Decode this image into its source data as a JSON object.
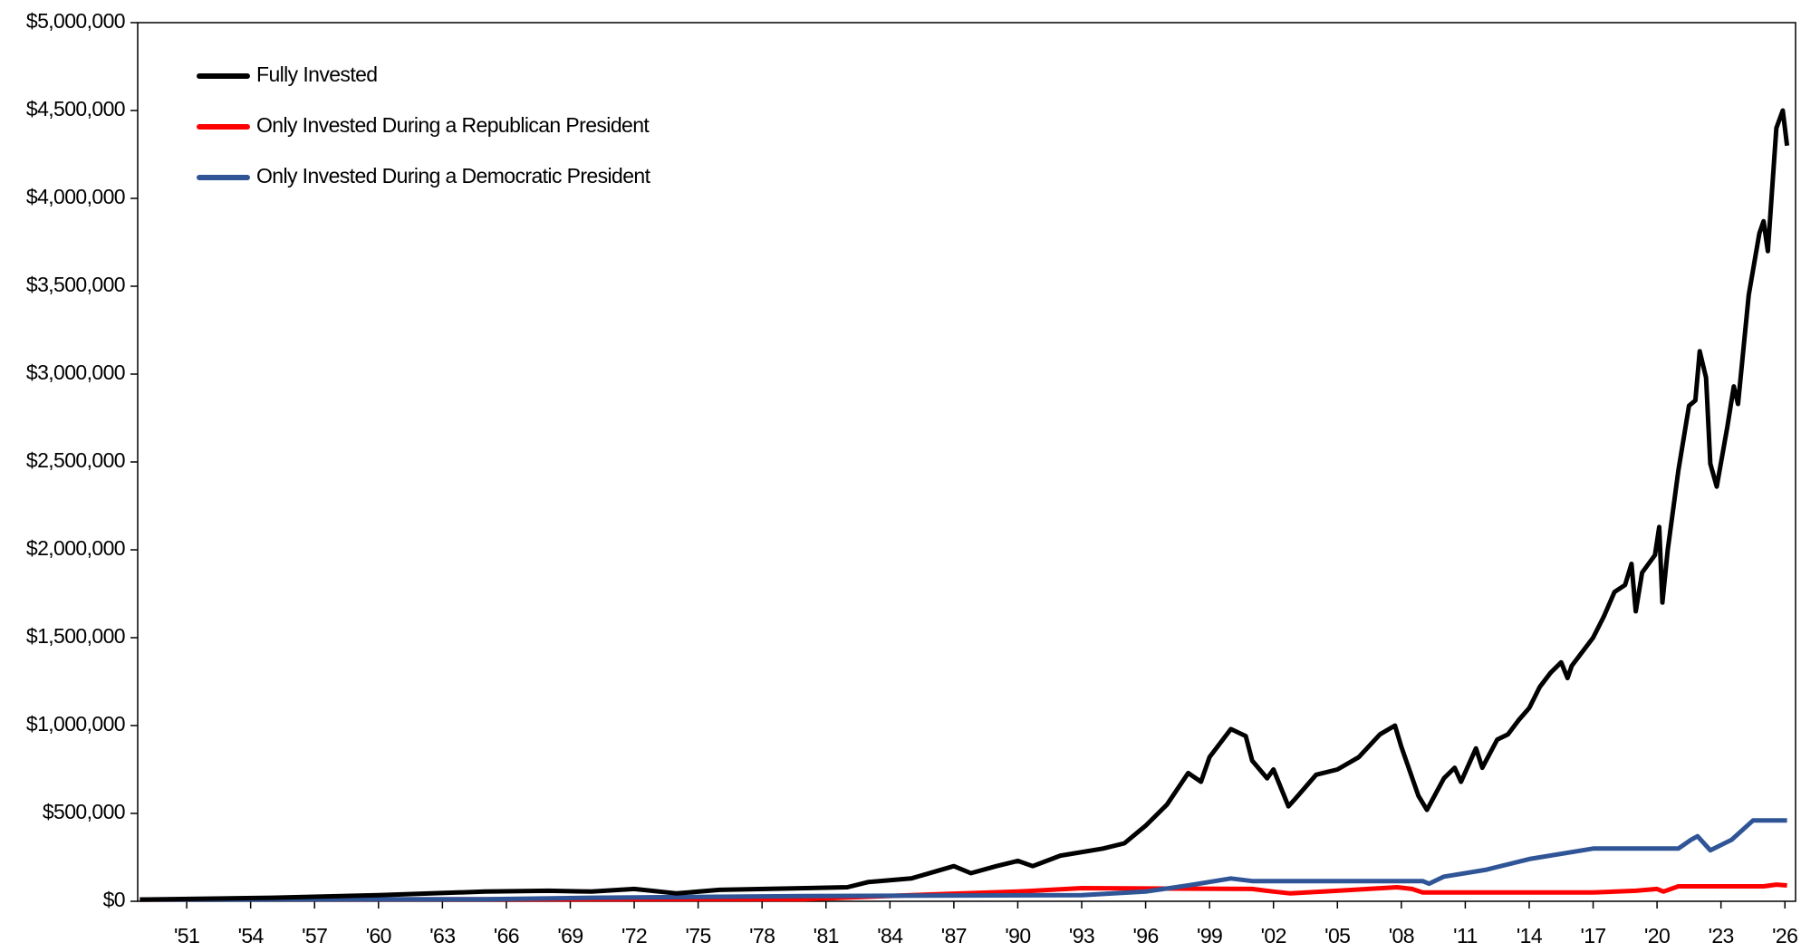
{
  "chart_data": {
    "type": "line",
    "xlim": [
      1948.7,
      2026.5
    ],
    "ylim": [
      0,
      5000000
    ],
    "yticks": [
      {
        "value": 0,
        "label": "$0"
      },
      {
        "value": 500000,
        "label": "$500,000"
      },
      {
        "value": 1000000,
        "label": "$1,000,000"
      },
      {
        "value": 1500000,
        "label": "$1,500,000"
      },
      {
        "value": 2000000,
        "label": "$2,000,000"
      },
      {
        "value": 2500000,
        "label": "$2,500,000"
      },
      {
        "value": 3000000,
        "label": "$3,000,000"
      },
      {
        "value": 3500000,
        "label": "$3,500,000"
      },
      {
        "value": 4000000,
        "label": "$4,000,000"
      },
      {
        "value": 4500000,
        "label": "$4,500,000"
      },
      {
        "value": 5000000,
        "label": "$5,000,000"
      }
    ],
    "xticks": [
      {
        "value": 1951,
        "label": "'51"
      },
      {
        "value": 1954,
        "label": "'54"
      },
      {
        "value": 1957,
        "label": "'57"
      },
      {
        "value": 1960,
        "label": "'60"
      },
      {
        "value": 1963,
        "label": "'63"
      },
      {
        "value": 1966,
        "label": "'66"
      },
      {
        "value": 1969,
        "label": "'69"
      },
      {
        "value": 1972,
        "label": "'72"
      },
      {
        "value": 1975,
        "label": "'75"
      },
      {
        "value": 1978,
        "label": "'78"
      },
      {
        "value": 1981,
        "label": "'81"
      },
      {
        "value": 1984,
        "label": "'84"
      },
      {
        "value": 1987,
        "label": "'87"
      },
      {
        "value": 1990,
        "label": "'90"
      },
      {
        "value": 1993,
        "label": "'93"
      },
      {
        "value": 1996,
        "label": "'96"
      },
      {
        "value": 1999,
        "label": "'99"
      },
      {
        "value": 2002,
        "label": "'02"
      },
      {
        "value": 2005,
        "label": "'05"
      },
      {
        "value": 2008,
        "label": "'08"
      },
      {
        "value": 2011,
        "label": "'11"
      },
      {
        "value": 2014,
        "label": "'14"
      },
      {
        "value": 2017,
        "label": "'17"
      },
      {
        "value": 2020,
        "label": "'20"
      },
      {
        "value": 2023,
        "label": "'23"
      },
      {
        "value": 2026,
        "label": "'26"
      }
    ],
    "legend": "top-left",
    "series": [
      {
        "name": "Fully Invested",
        "color": "#000000",
        "x": [
          1948.8,
          1955,
          1960,
          1965,
          1968,
          1970,
          1972,
          1974,
          1976,
          1980,
          1982,
          1983,
          1985,
          1987,
          1987.8,
          1989,
          1990,
          1990.7,
          1992,
          1994,
          1995,
          1996,
          1997,
          1998,
          1998.6,
          1999,
          1999.5,
          2000,
          2000.7,
          2001,
          2001.7,
          2002,
          2002.7,
          2003,
          2004,
          2005,
          2006,
          2007,
          2007.7,
          2008,
          2008.8,
          2009.2,
          2010,
          2010.5,
          2010.8,
          2011.5,
          2011.8,
          2012.5,
          2013,
          2013.5,
          2014,
          2014.5,
          2015,
          2015.5,
          2015.8,
          2016,
          2017,
          2017.5,
          2018,
          2018.5,
          2018.8,
          2019,
          2019.3,
          2019.9,
          2020.1,
          2020.25,
          2020.5,
          2021,
          2021.5,
          2021.8,
          2022,
          2022.3,
          2022.5,
          2022.8,
          2023.3,
          2023.6,
          2023.8,
          2024.3,
          2024.8,
          2025,
          2025.2,
          2025.6,
          2025.9,
          2026.1
        ],
        "values": [
          10000,
          20000,
          35000,
          55000,
          60000,
          55000,
          70000,
          45000,
          65000,
          75000,
          80000,
          110000,
          130000,
          200000,
          160000,
          200000,
          230000,
          200000,
          260000,
          300000,
          330000,
          430000,
          550000,
          730000,
          680000,
          820000,
          900000,
          980000,
          940000,
          800000,
          700000,
          750000,
          540000,
          580000,
          720000,
          750000,
          820000,
          950000,
          1000000,
          880000,
          600000,
          520000,
          700000,
          760000,
          680000,
          870000,
          760000,
          920000,
          950000,
          1030000,
          1100000,
          1220000,
          1300000,
          1360000,
          1270000,
          1340000,
          1500000,
          1620000,
          1760000,
          1800000,
          1920000,
          1650000,
          1870000,
          1970000,
          2130000,
          1700000,
          2000000,
          2450000,
          2820000,
          2850000,
          3130000,
          2980000,
          2490000,
          2360000,
          2700000,
          2930000,
          2830000,
          3450000,
          3800000,
          3870000,
          3700000,
          4400000,
          4500000,
          4300000
        ]
      },
      {
        "name": "Only Invested During a Republican President",
        "color": "#ff0000",
        "x": [
          1948.8,
          1980,
          1985,
          1990,
          1993,
          2001,
          2002,
          2002.8,
          2005,
          2007.8,
          2008.5,
          2009,
          2017,
          2019,
          2020,
          2020.3,
          2021,
          2025,
          2025.6,
          2026.1
        ],
        "values": [
          10000,
          12000,
          35000,
          55000,
          75000,
          70000,
          55000,
          45000,
          60000,
          80000,
          70000,
          50000,
          50000,
          60000,
          70000,
          55000,
          85000,
          85000,
          95000,
          90000
        ]
      },
      {
        "name": "Only Invested During a Democratic President",
        "color": "#2f5597",
        "x": [
          1948.8,
          1965,
          1970,
          1980,
          1993,
          1996,
          1998,
          2000,
          2001,
          2009,
          2009.3,
          2010,
          2012,
          2014,
          2017,
          2021,
          2021.6,
          2021.9,
          2022.5,
          2023.5,
          2024.5,
          2026.1
        ],
        "values": [
          10000,
          12000,
          20000,
          30000,
          35000,
          55000,
          90000,
          130000,
          115000,
          115000,
          100000,
          140000,
          180000,
          240000,
          300000,
          300000,
          350000,
          370000,
          290000,
          350000,
          460000,
          460000
        ]
      }
    ]
  }
}
